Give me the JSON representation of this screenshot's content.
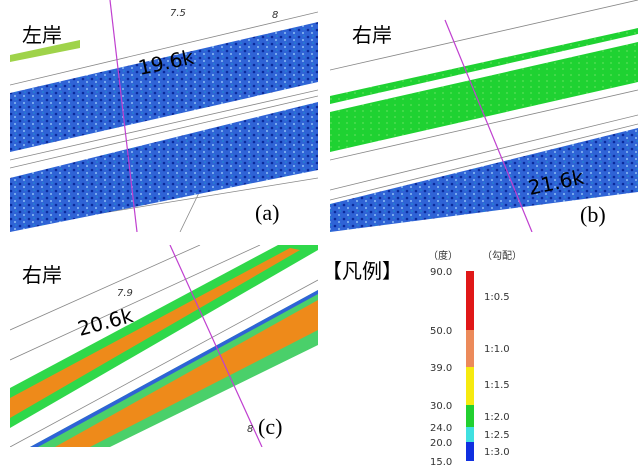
{
  "panels": [
    {
      "bank": "左岸",
      "distance": "19.6k",
      "label": "(a)",
      "map_labels": [
        "7.5",
        "8"
      ]
    },
    {
      "bank": "右岸",
      "distance": "21.6k",
      "label": "(b)"
    },
    {
      "bank": "右岸",
      "distance": "20.6k",
      "label": "(c)",
      "map_labels": [
        "7.9",
        "8"
      ]
    }
  ],
  "legend": {
    "title": "【凡例】",
    "degree_header": "（度）",
    "slope_header": "（勾配）",
    "degrees": [
      "90.0",
      "50.0",
      "39.0",
      "30.0",
      "24.0",
      "20.0",
      "15.0"
    ],
    "slopes": [
      "1:0.5",
      "1:1.0",
      "1:1.5",
      "1:2.0",
      "1:2.5",
      "1:3.0"
    ]
  }
}
